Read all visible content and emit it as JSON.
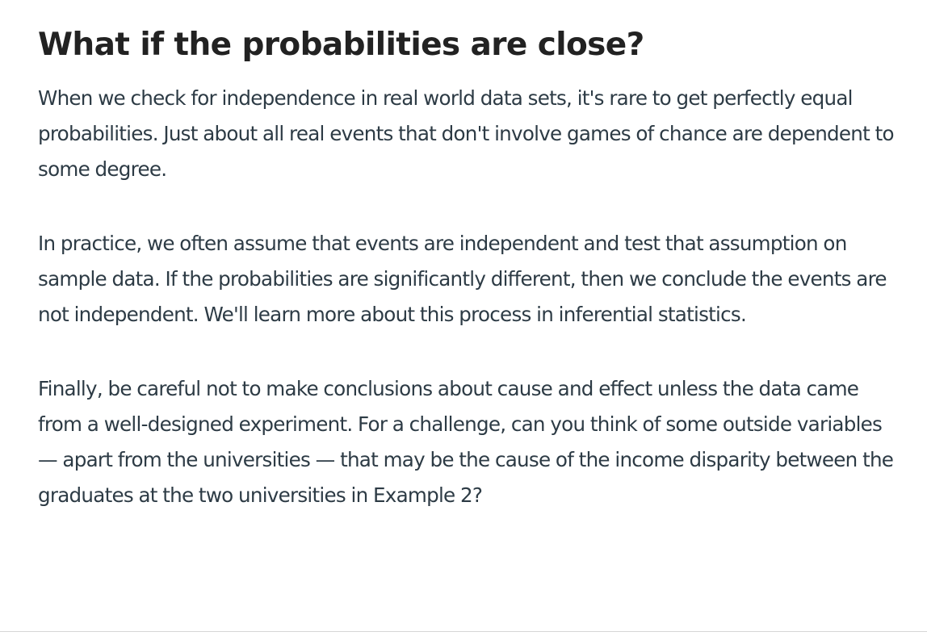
{
  "heading": "What if the probabilities are close?",
  "paragraphs": [
    "When we check for independence in real world data sets, it's rare to get perfectly equal probabilities. Just about all real events that don't involve games of chance are dependent to some degree.",
    "In practice, we often assume that events are independent and test that assumption on sample data. If the probabilities are significantly different, then we conclude the events are not independent. We'll learn more about this process in inferential statistics.",
    "Finally, be careful not to make conclusions about cause and effect unless the data came from a well-designed experiment. For a challenge, can you think of some outside variables — apart from the universities — that may be the cause of the income disparity between the graduates at the two universities in Example 2?"
  ]
}
